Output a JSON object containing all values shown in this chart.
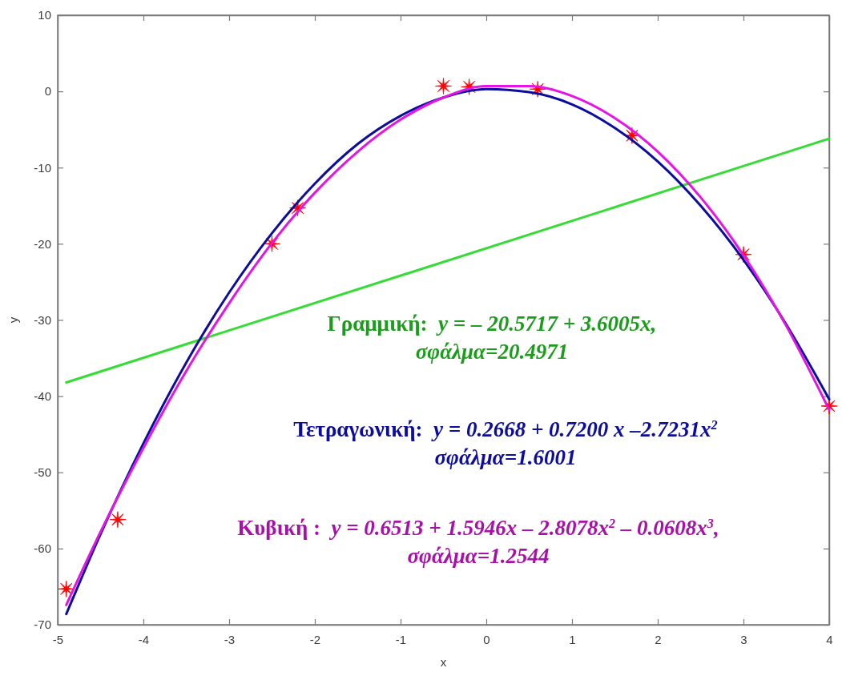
{
  "chart_data": {
    "type": "line",
    "xlabel": "x",
    "ylabel": "y",
    "xlim": [
      -5,
      4
    ],
    "xticks": [
      -5,
      -4,
      -3,
      -2,
      -1,
      0,
      1,
      2,
      3,
      4
    ],
    "ylim": [
      -70,
      10
    ],
    "yticks": [
      -70,
      -60,
      -50,
      -40,
      -30,
      -20,
      -10,
      0,
      10
    ],
    "series": [
      {
        "type": "scatter",
        "marker": "star",
        "color": "#ff0000",
        "x": [
          -4.9,
          -4.3,
          -2.5,
          -2.2,
          -0.5,
          -0.2,
          0.6,
          1.7,
          3.0,
          4.0
        ],
        "values": [
          -65.3,
          -56.2,
          -20,
          -15.3,
          0.7,
          0.6,
          0.3,
          -5.8,
          -21.4,
          -41.3
        ]
      },
      {
        "color": "#33dd33",
        "x": [
          -4.9,
          4
        ],
        "values": [
          -38.2,
          -6.2
        ]
      },
      {
        "color": "#0c0ca0",
        "x": [
          -4.9,
          -4.5,
          -4,
          -3.5,
          -3,
          -2.5,
          -2,
          -1.5,
          -1,
          -0.5,
          0,
          0.5,
          1,
          1.5,
          2,
          2.5,
          3,
          3.5,
          4
        ],
        "values": [
          -68.6,
          -58.1,
          -46.2,
          -35.6,
          -26.4,
          -18.6,
          -12.1,
          -6.9,
          -3.2,
          -0.8,
          0.3,
          -0.1,
          -1.7,
          -4.8,
          -9.2,
          -15.0,
          -22.1,
          -30.6,
          -40.4
        ]
      },
      {
        "color": "#e614e6",
        "x": [
          -4.9,
          -4.5,
          -4,
          -3.5,
          -3,
          -2.5,
          -2,
          -1.5,
          -1,
          -0.5,
          0,
          0.5,
          1,
          1.5,
          2,
          2.5,
          3,
          3.5,
          4
        ],
        "values": [
          -67.4,
          -57.8,
          -46.8,
          -36.7,
          -27.8,
          -19.9,
          -13.3,
          -7.9,
          -3.7,
          -0.8,
          0.7,
          0.7,
          -0.6,
          -3.5,
          -7.9,
          -13.9,
          -21.5,
          -30.8,
          -41.8
        ]
      }
    ],
    "annotations": [
      "Γραμμική:  y = – 20.5717 + 3.6005x,\nσφάλμα=20.4971",
      "Τετραγωνική:  y = 0.2668 + 0.7200 x –2.7231x$^{2}$\nσφάλμα=1.6001",
      "Κυβική :  y = 0.6513 + 1.5946x – 2.8078x$^{2}$ – 0.0608x$^{3}$,\nσφάλμα=1.2544"
    ]
  }
}
